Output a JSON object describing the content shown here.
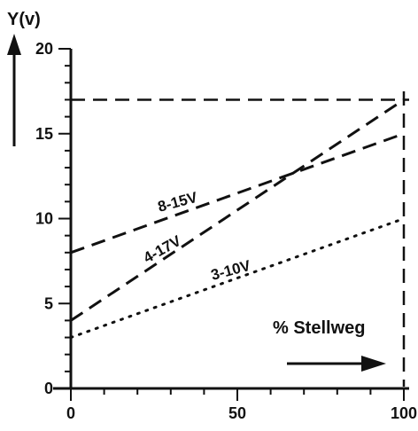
{
  "chart_data": {
    "type": "line",
    "title": "",
    "ylabel": "Y(v)",
    "xlabel": "% Stellweg",
    "xlim": [
      0,
      100
    ],
    "ylim": [
      0,
      20
    ],
    "x_ticks": [
      "0",
      "50",
      "100"
    ],
    "y_ticks": [
      "0",
      "5",
      "10",
      "15",
      "20"
    ],
    "grid": false,
    "series": [
      {
        "name": "8-15V",
        "style": "dashed",
        "x": [
          0,
          100
        ],
        "y": [
          8,
          15
        ]
      },
      {
        "name": "4-17V",
        "style": "dashed",
        "x": [
          0,
          100
        ],
        "y": [
          4,
          17
        ]
      },
      {
        "name": "3-10V",
        "style": "dotted",
        "x": [
          0,
          100
        ],
        "y": [
          3,
          10
        ]
      }
    ],
    "reference_lines": [
      {
        "orientation": "horizontal",
        "y": 17,
        "style": "dashed"
      },
      {
        "orientation": "vertical",
        "x": 100,
        "style": "dashed"
      }
    ],
    "colors": {
      "ink": "#111111",
      "background": "#ffffff"
    }
  }
}
